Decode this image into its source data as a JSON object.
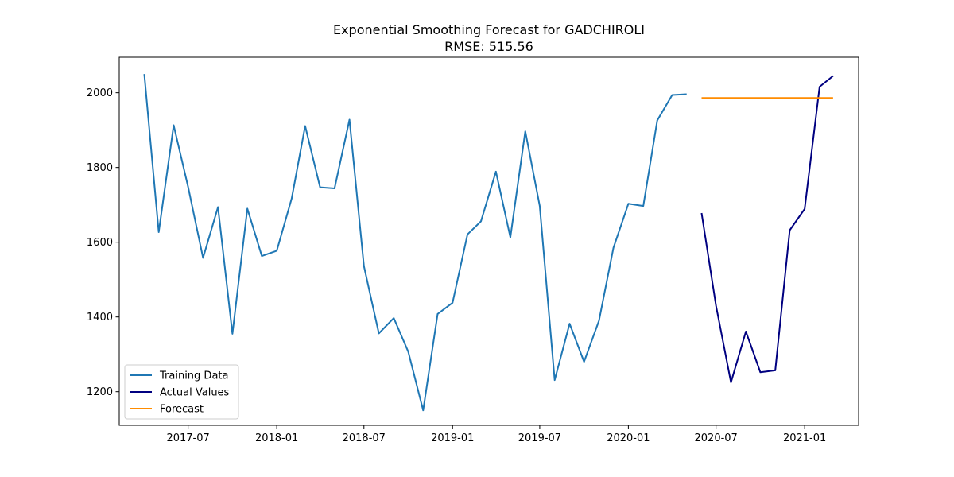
{
  "chart_data": {
    "type": "line",
    "title": "Exponential Smoothing Forecast for GADCHIROLI",
    "subtitle": "RMSE: 515.56",
    "xlabel": "",
    "ylabel": "",
    "xlim": [
      "2017-02-08",
      "2021-04-23"
    ],
    "ylim": [
      1110,
      2095
    ],
    "x_ticks": [
      "2017-07-01",
      "2018-01-01",
      "2018-07-01",
      "2019-01-01",
      "2019-07-01",
      "2020-01-01",
      "2020-07-01",
      "2021-01-01"
    ],
    "x_tick_labels": [
      "2017-07",
      "2018-01",
      "2018-07",
      "2019-01",
      "2019-07",
      "2020-01",
      "2020-07",
      "2021-01"
    ],
    "y_ticks": [
      1200,
      1400,
      1600,
      1800,
      2000
    ],
    "y_tick_labels": [
      "1200",
      "1400",
      "1600",
      "1800",
      "2000"
    ],
    "grid": false,
    "legend_position": "lower-left",
    "series": [
      {
        "name": "Training Data",
        "color": "#1f77b4",
        "x": [
          "2017-04-01",
          "2017-05-01",
          "2017-06-01",
          "2017-07-01",
          "2017-08-01",
          "2017-09-01",
          "2017-10-01",
          "2017-11-01",
          "2017-12-01",
          "2018-01-01",
          "2018-02-01",
          "2018-03-01",
          "2018-04-01",
          "2018-05-01",
          "2018-06-01",
          "2018-07-01",
          "2018-08-01",
          "2018-09-01",
          "2018-10-01",
          "2018-11-01",
          "2018-12-01",
          "2019-01-01",
          "2019-02-01",
          "2019-03-01",
          "2019-04-01",
          "2019-05-01",
          "2019-06-01",
          "2019-07-01",
          "2019-08-01",
          "2019-09-01",
          "2019-10-01",
          "2019-11-01",
          "2019-12-01",
          "2020-01-01",
          "2020-02-01",
          "2020-03-01",
          "2020-04-01",
          "2020-05-01"
        ],
        "y": [
          2050,
          1627,
          1913,
          1748,
          1558,
          1694,
          1355,
          1690,
          1563,
          1577,
          1717,
          1911,
          1747,
          1744,
          1928,
          1536,
          1356,
          1397,
          1307,
          1150,
          1408,
          1438,
          1621,
          1656,
          1789,
          1613,
          1897,
          1697,
          1231,
          1382,
          1280,
          1390,
          1585,
          1703,
          1697,
          1926,
          1994,
          1996
        ]
      },
      {
        "name": "Actual Values",
        "color": "#000080",
        "x": [
          "2020-06-01",
          "2020-07-01",
          "2020-08-01",
          "2020-09-01",
          "2020-10-01",
          "2020-11-01",
          "2020-12-01",
          "2021-01-01",
          "2021-02-01",
          "2021-03-01"
        ],
        "y": [
          1678,
          1430,
          1225,
          1361,
          1252,
          1257,
          1632,
          1689,
          2016,
          2045
        ]
      },
      {
        "name": "Forecast",
        "color": "#ff8c00",
        "x": [
          "2020-06-01",
          "2021-03-01"
        ],
        "y": [
          1986,
          1986
        ]
      }
    ]
  }
}
